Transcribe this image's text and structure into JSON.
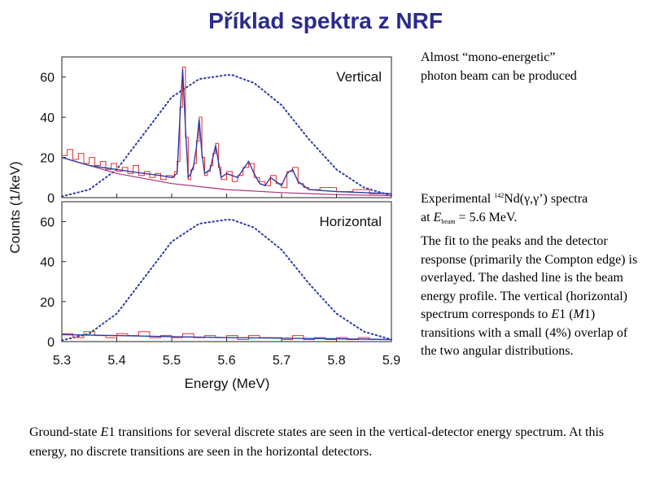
{
  "slide": {
    "title": "Příklad spektra z NRF",
    "note_top": {
      "line1": "Almost “mono-energetic”",
      "line2": "photon beam can be produced"
    },
    "note_main": {
      "exp_prefix": "Experimental ",
      "isotope_mass": "142",
      "exp_reaction": "Nd(γ,γ’) spectra",
      "at_prefix": "at ",
      "e_symbol": "E",
      "e_sub": "beam",
      "at_value": " = 5.6 MeV.",
      "text_a": "The fit to the peaks and the detector response (primarily the Compton edge) is overlayed. The dashed line is the beam energy profile. The vertical (horizontal) spectrum corresponds to ",
      "e1": "E",
      "e1_num": "1",
      "paren_open": " (",
      "m1": "M",
      "m1_num": "1",
      "text_b": ") transitions with a small (4%) overlap of the two angular distributions."
    },
    "bottom": {
      "text_a": "Ground-state ",
      "e1": "E",
      "e1_num": "1",
      "text_b": " transitions for several discrete states are seen in the vertical-detector energy spectrum. At this energy, no discrete transitions are seen in the horizontal detectors."
    }
  },
  "colors": {
    "data": "#e0302c",
    "fit": "#2b3aa8",
    "background_fit": "#b03080",
    "beam_profile": "#2b3aa8",
    "title": "#2b2b8c"
  },
  "chart_data": [
    {
      "type": "line",
      "panel_label": "Vertical",
      "xlim": [
        5.3,
        5.9
      ],
      "ylim": [
        0,
        70
      ],
      "yticks": [
        0,
        20,
        40,
        60
      ],
      "xlabel": "",
      "ylabel": "Counts (1/keV)",
      "series": [
        {
          "style": "fit",
          "x": [
            5.3,
            5.35,
            5.4,
            5.45,
            5.48,
            5.5,
            5.51,
            5.515,
            5.52,
            5.525,
            5.53,
            5.535,
            5.54,
            5.545,
            5.55,
            5.555,
            5.56,
            5.57,
            5.575,
            5.58,
            5.585,
            5.59,
            5.6,
            5.62,
            5.63,
            5.64,
            5.65,
            5.66,
            5.67,
            5.68,
            5.69,
            5.7,
            5.71,
            5.72,
            5.73,
            5.75,
            5.8,
            5.85,
            5.9
          ],
          "y": [
            20,
            16,
            14,
            12,
            11,
            10,
            12,
            40,
            64,
            35,
            10,
            12,
            16,
            25,
            39,
            22,
            12,
            14,
            20,
            26,
            18,
            10,
            12,
            10,
            14,
            18,
            12,
            7,
            6,
            10,
            8,
            6,
            12,
            14,
            8,
            4,
            3,
            2.5,
            2
          ]
        },
        {
          "style": "background",
          "x": [
            5.3,
            5.4,
            5.5,
            5.6,
            5.7,
            5.8,
            5.9
          ],
          "y": [
            20,
            12,
            7,
            4,
            2.5,
            1.5,
            1
          ]
        },
        {
          "style": "beam",
          "x": [
            5.3,
            5.35,
            5.4,
            5.45,
            5.5,
            5.55,
            5.6,
            5.61,
            5.65,
            5.7,
            5.75,
            5.8,
            5.85,
            5.9
          ],
          "y": [
            0.6,
            4,
            14,
            32,
            50,
            59,
            61,
            61,
            57,
            46,
            29,
            14,
            5,
            1
          ]
        },
        {
          "style": "data",
          "x": [
            5.3,
            5.31,
            5.32,
            5.33,
            5.34,
            5.35,
            5.36,
            5.37,
            5.38,
            5.39,
            5.4,
            5.41,
            5.42,
            5.43,
            5.44,
            5.45,
            5.46,
            5.47,
            5.48,
            5.49,
            5.5,
            5.505,
            5.51,
            5.515,
            5.52,
            5.525,
            5.53,
            5.535,
            5.54,
            5.545,
            5.55,
            5.555,
            5.56,
            5.565,
            5.57,
            5.575,
            5.58,
            5.585,
            5.59,
            5.6,
            5.61,
            5.62,
            5.63,
            5.64,
            5.65,
            5.66,
            5.67,
            5.68,
            5.69,
            5.7,
            5.71,
            5.72,
            5.73,
            5.74,
            5.75,
            5.77,
            5.8,
            5.83,
            5.86,
            5.9
          ],
          "y": [
            21,
            24,
            19,
            22,
            17,
            20,
            16,
            18,
            14,
            17,
            13,
            15,
            12,
            16,
            11,
            13,
            10,
            12,
            9,
            11,
            10,
            13,
            18,
            45,
            65,
            30,
            9,
            14,
            17,
            28,
            40,
            20,
            11,
            13,
            16,
            22,
            27,
            15,
            9,
            13,
            8,
            11,
            15,
            17,
            10,
            8,
            6,
            11,
            7,
            5,
            13,
            15,
            7,
            5,
            4,
            5,
            3,
            4,
            2,
            2
          ]
        }
      ]
    },
    {
      "type": "line",
      "panel_label": "Horizontal",
      "xlim": [
        5.3,
        5.9
      ],
      "ylim": [
        0,
        70
      ],
      "yticks": [
        0,
        20,
        40,
        60
      ],
      "xticks": [
        5.3,
        5.4,
        5.5,
        5.6,
        5.7,
        5.8,
        5.9
      ],
      "xlabel": "Energy (MeV)",
      "ylabel": "Counts (1/keV)",
      "series": [
        {
          "style": "beam",
          "x": [
            5.3,
            5.35,
            5.4,
            5.45,
            5.5,
            5.55,
            5.6,
            5.61,
            5.65,
            5.7,
            5.75,
            5.8,
            5.85,
            5.9
          ],
          "y": [
            0.6,
            4,
            14,
            32,
            50,
            59,
            61,
            61,
            57,
            46,
            29,
            14,
            5,
            1
          ]
        },
        {
          "style": "fit",
          "x": [
            5.3,
            5.4,
            5.5,
            5.6,
            5.7,
            5.8,
            5.9
          ],
          "y": [
            3.5,
            3,
            2.5,
            2,
            1.7,
            1.4,
            1
          ]
        },
        {
          "style": "data",
          "x": [
            5.3,
            5.32,
            5.34,
            5.36,
            5.38,
            5.4,
            5.42,
            5.44,
            5.46,
            5.48,
            5.5,
            5.52,
            5.54,
            5.56,
            5.58,
            5.6,
            5.62,
            5.64,
            5.66,
            5.68,
            5.7,
            5.72,
            5.74,
            5.76,
            5.78,
            5.8,
            5.82,
            5.84,
            5.86,
            5.88,
            5.9
          ],
          "y": [
            4,
            2,
            5,
            3,
            2,
            4,
            3,
            5,
            2,
            3,
            2,
            4,
            2,
            3,
            2,
            3,
            1,
            3,
            2,
            2,
            1,
            3,
            1,
            2,
            1,
            2,
            1,
            2,
            1,
            1,
            1
          ]
        }
      ]
    }
  ]
}
